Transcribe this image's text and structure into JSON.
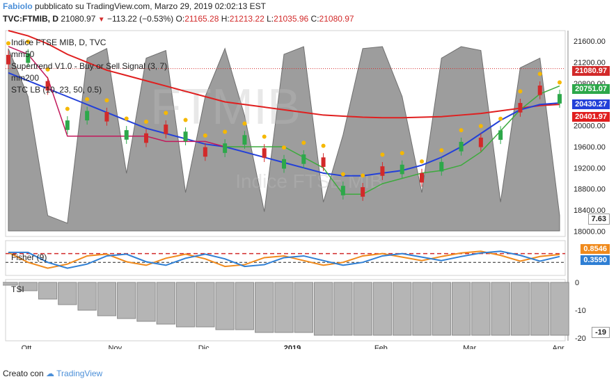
{
  "header": {
    "author": "FabioIo",
    "published": "pubblicato su TradingView.com, Marzo 29, 2019 02:02:13 EST",
    "symbol": "TVC:FTMIB, D",
    "last": "21080.97",
    "change": "−113.22 (−0.53%)",
    "o_label": "O:",
    "o": "21165.28",
    "h_label": "H:",
    "h": "21213.22",
    "l_label": "L:",
    "l": "21035.96",
    "c_label": "C:",
    "c": "21080.97"
  },
  "legend": {
    "title": "Indice FTSE MIB, D, TVC",
    "ma50": "mm50",
    "supertrend": "Supertrend V1.0 - Buy or Sell Signal (3, 7)",
    "ma200": "mm200",
    "stc": "STC LB (10, 23, 50, 0.5)",
    "fisher": "Fisher (9)",
    "tsi": "TSI"
  },
  "watermark": {
    "big": "FTMIB",
    "small": "Indice FTSE MIB"
  },
  "badges": {
    "price": "21080.97",
    "supertrend": "20751.07",
    "ma50": "20430.27",
    "ma200": "20401.97",
    "stc": "7.63",
    "fisher_a": "0.8546",
    "fisher_b": "0.3590",
    "tsi": "-19"
  },
  "colors": {
    "up": "#2da84a",
    "down": "#d22a2a",
    "ma50": "#2340d8",
    "ma200": "#e01f1f",
    "supertrend_up": "#3daa3d",
    "supertrend_down": "#c2185b",
    "stc": "#8c8c8c",
    "signal": "#f5b800",
    "fisher_1": "#f08a1c",
    "fisher_2": "#2f7fd4",
    "tsi_bar": "#b5b5b5"
  },
  "chart_data": {
    "type": "candlestick",
    "title": "Indice FTSE MIB, D, TVC",
    "y_ticks": [
      21600,
      21200,
      20800,
      20400,
      20000,
      19600,
      19200,
      18800,
      18400,
      18000
    ],
    "ylim": [
      17900,
      21800
    ],
    "x_ticks": [
      "Ott",
      "Nov",
      "Dic",
      "2019",
      "Feb",
      "Mar",
      "Apr"
    ],
    "fisher_ylim": [
      -2.5,
      2.5
    ],
    "tsi_ticks": [
      0,
      -10,
      -20
    ],
    "tsi_ylim": [
      -21,
      1
    ],
    "series": [
      {
        "name": "mm50",
        "values": [
          21000,
          20850,
          20700,
          20550,
          20400,
          20250,
          20100,
          19950,
          19850,
          19750,
          19650,
          19600,
          19500,
          19400,
          19300,
          19200,
          19100,
          19050,
          19050,
          19100,
          19150,
          19250,
          19400,
          19600,
          19850,
          20100,
          20300,
          20400,
          20430
        ]
      },
      {
        "name": "mm200",
        "values": [
          21800,
          21700,
          21550,
          21350,
          21200,
          21050,
          20950,
          20850,
          20750,
          20650,
          20550,
          20450,
          20400,
          20350,
          20300,
          20250,
          20200,
          20180,
          20160,
          20150,
          20150,
          20160,
          20170,
          20200,
          20230,
          20280,
          20330,
          20380,
          20402
        ]
      },
      {
        "name": "Supertrend V1.0 - Buy or Sell Signal (3, 7)",
        "values": [
          21500,
          21350,
          20900,
          19800,
          19800,
          19800,
          19800,
          19800,
          19700,
          19700,
          19700,
          19600,
          19600,
          19600,
          19600,
          19400,
          19200,
          18700,
          18700,
          18900,
          19000,
          19100,
          19150,
          19250,
          19500,
          19900,
          20300,
          20600,
          20751
        ]
      },
      {
        "name": "STC LB (10, 23, 50, 0.5)",
        "values": [
          95,
          70,
          8,
          4,
          90,
          95,
          30,
          90,
          94,
          20,
          70,
          95,
          60,
          10,
          92,
          96,
          15,
          50,
          95,
          96,
          70,
          20,
          90,
          96,
          94,
          15,
          85,
          90,
          8
        ]
      },
      {
        "name": "Fisher (9)",
        "values": [
          1.2,
          -0.5,
          -1.5,
          -0.8,
          0.6,
          0.9,
          -0.4,
          -1.0,
          0.2,
          0.9,
          0.1,
          -1.2,
          -0.9,
          0.3,
          0.6,
          -0.2,
          -1.0,
          -0.5,
          0.6,
          1.0,
          0.4,
          -0.2,
          0.5,
          1.1,
          1.4,
          0.7,
          -0.3,
          0.5,
          0.85
        ]
      },
      {
        "name": "TSI",
        "values": [
          -1,
          -3,
          -6,
          -8,
          -10,
          -12,
          -13,
          -14,
          -15,
          -16,
          -16,
          -17,
          -17,
          -18,
          -18,
          -18,
          -19,
          -19,
          -19,
          -19,
          -19,
          -19,
          -19,
          -19,
          -19,
          -19,
          -19,
          -19,
          -19
        ]
      }
    ]
  }
}
